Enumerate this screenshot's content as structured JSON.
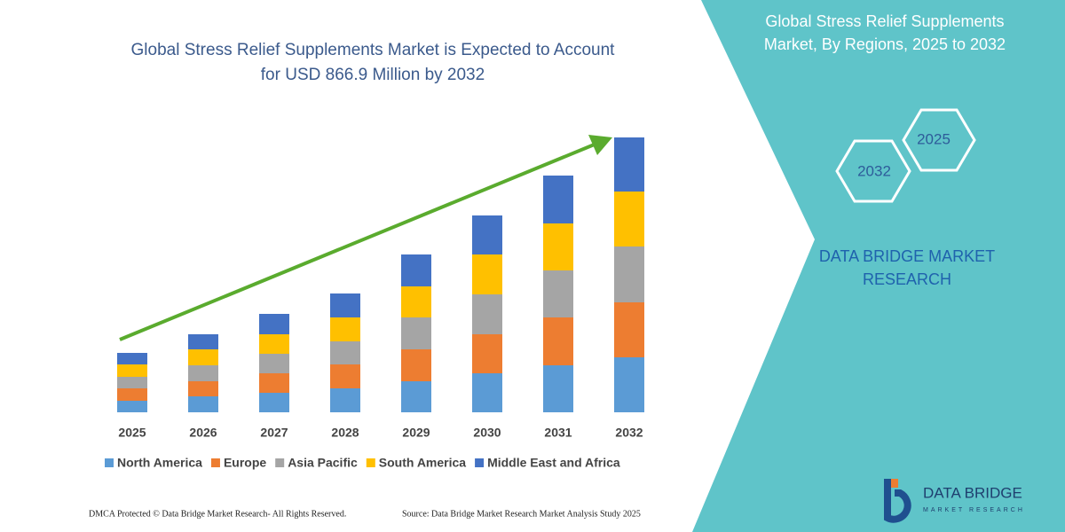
{
  "chart_data": {
    "type": "stacked-bar",
    "title": [
      "Global Stress Relief Supplements Market is Expected to Account",
      "for USD 866.9 Million by 2032"
    ],
    "categories": [
      "2025",
      "2026",
      "2027",
      "2028",
      "2029",
      "2030",
      "2031",
      "2032"
    ],
    "series": [
      {
        "name": "North America",
        "color": "#5b9bd5",
        "values": [
          13,
          18,
          22,
          27,
          35,
          44,
          53,
          62
        ]
      },
      {
        "name": "Europe",
        "color": "#ed7d31",
        "values": [
          14,
          17,
          22,
          27,
          36,
          44,
          54,
          62
        ]
      },
      {
        "name": "Asia Pacific",
        "color": "#a5a5a5",
        "values": [
          13,
          18,
          22,
          26,
          36,
          45,
          53,
          63
        ]
      },
      {
        "name": "South America",
        "color": "#ffc000",
        "values": [
          14,
          18,
          22,
          27,
          35,
          45,
          53,
          62
        ]
      },
      {
        "name": "Middle East and Africa",
        "color": "#4472c4",
        "values": [
          13,
          17,
          23,
          27,
          36,
          44,
          54,
          61
        ]
      }
    ],
    "ylim": [
      0,
      310
    ]
  },
  "panel": {
    "title": [
      "Global Stress Relief Supplements",
      "Market, By Regions, 2025 to 2032"
    ],
    "hexagons": [
      "2025",
      "2032"
    ],
    "brand": [
      "DATA BRIDGE MARKET",
      "RESEARCH"
    ],
    "logo": [
      "DATA BRIDGE",
      "MARKET RESEARCH"
    ]
  },
  "footer": {
    "copyright": "DMCA Protected © Data Bridge Market Research- All Rights Reserved.",
    "source": "Source: Data Bridge Market Research  Market Analysis Study 2025"
  }
}
